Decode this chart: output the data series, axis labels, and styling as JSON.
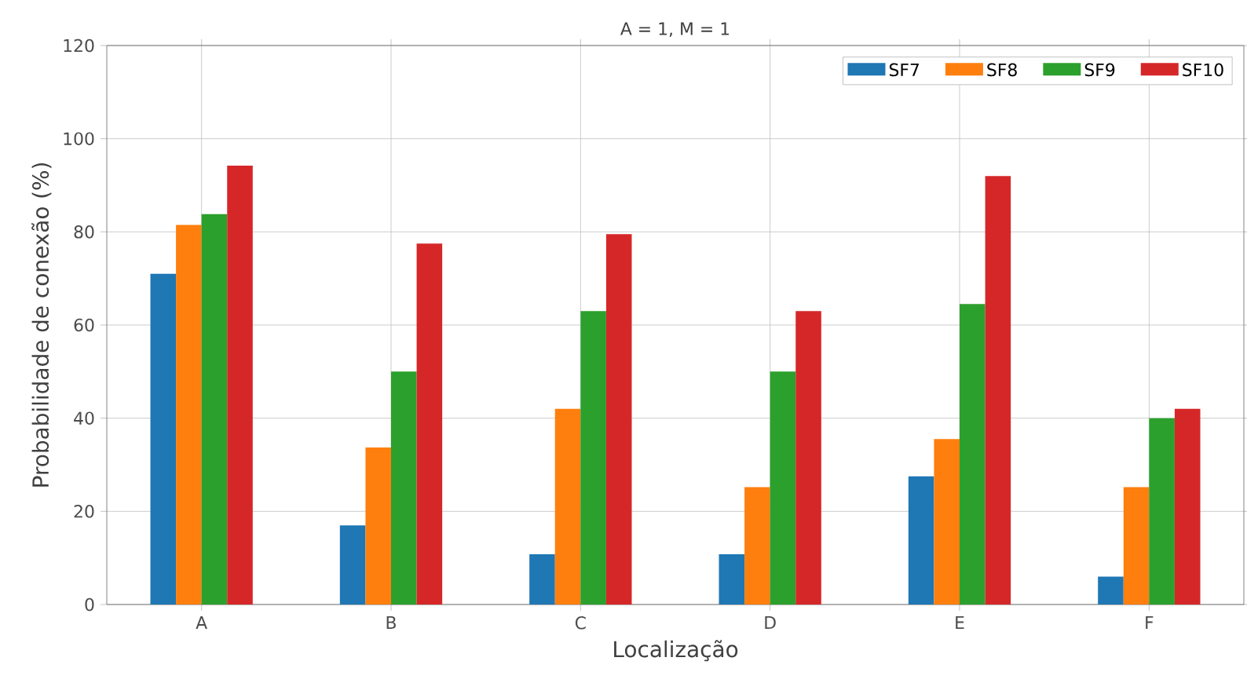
{
  "chart_data": {
    "type": "bar",
    "title": "A = 1, M = 1",
    "xlabel": "Localização",
    "ylabel": "Probabilidade de conexão (%)",
    "categories": [
      "A",
      "B",
      "C",
      "D",
      "E",
      "F"
    ],
    "series": [
      {
        "name": "SF7",
        "color": "#1f77b4",
        "values": [
          71,
          17,
          10.8,
          10.8,
          27.5,
          6
        ]
      },
      {
        "name": "SF8",
        "color": "#ff7f0e",
        "values": [
          81.5,
          33.7,
          42,
          25.2,
          35.5,
          25.2
        ]
      },
      {
        "name": "SF9",
        "color": "#2ca02c",
        "values": [
          83.8,
          50,
          63,
          50,
          64.5,
          40
        ]
      },
      {
        "name": "SF10",
        "color": "#d62728",
        "values": [
          94.2,
          77.5,
          79.5,
          63,
          92,
          42
        ]
      }
    ],
    "ylim": [
      0,
      120
    ],
    "yticks": [
      0,
      20,
      40,
      60,
      80,
      100,
      120
    ],
    "grid": true,
    "legend": "top right"
  }
}
